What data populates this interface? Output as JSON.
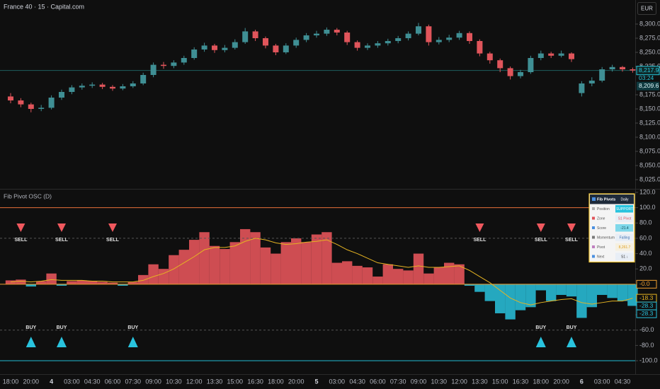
{
  "header": {
    "title": "France 40 · 15 · Capital.com",
    "currency": "EUR"
  },
  "chart_data": [
    {
      "type": "candlestick",
      "open": [
        8172,
        8165,
        8158,
        8150,
        8152,
        8170,
        8180,
        8188,
        8191,
        8193,
        8189,
        8186,
        8190,
        8195,
        8210,
        8228,
        8226,
        8232,
        8240,
        8255,
        8262,
        8254,
        8258,
        8268,
        8287,
        8275,
        8262,
        8250,
        8262,
        8272,
        8280,
        8283,
        8290,
        8285,
        8268,
        8258,
        8262,
        8266,
        8270,
        8275,
        8283,
        8296,
        8268,
        8272,
        8276,
        8284,
        8270,
        8248,
        8236,
        8222,
        8208,
        8215,
        8240,
        8248,
        8244,
        8248,
        8178,
        8195,
        8200,
        8220,
        8224,
        8220
      ],
      "high": [
        8178,
        8169,
        8161,
        8157,
        8174,
        8184,
        8192,
        8195,
        8197,
        8196,
        8192,
        8194,
        8199,
        8214,
        8232,
        8233,
        8236,
        8244,
        8259,
        8267,
        8265,
        8263,
        8273,
        8293,
        8290,
        8278,
        8265,
        8266,
        8276,
        8284,
        8288,
        8294,
        8293,
        8288,
        8271,
        8266,
        8270,
        8274,
        8279,
        8287,
        8302,
        8299,
        8277,
        8281,
        8288,
        8287,
        8273,
        8251,
        8239,
        8225,
        8219,
        8244,
        8253,
        8251,
        8253,
        8250,
        8199,
        8206,
        8224,
        8228,
        8226,
        8223
      ],
      "low": [
        8160,
        8153,
        8144,
        8146,
        8149,
        8166,
        8176,
        8184,
        8187,
        8185,
        8182,
        8183,
        8187,
        8192,
        8206,
        8221,
        8222,
        8228,
        8237,
        8251,
        8249,
        8250,
        8255,
        8265,
        8270,
        8257,
        8245,
        8247,
        8258,
        8268,
        8276,
        8279,
        8280,
        8263,
        8253,
        8254,
        8258,
        8262,
        8266,
        8271,
        8280,
        8262,
        8264,
        8268,
        8272,
        8265,
        8243,
        8230,
        8215,
        8202,
        8204,
        8212,
        8236,
        8240,
        8241,
        8233,
        8172,
        8190,
        8197,
        8216,
        8216,
        8214
      ],
      "close": [
        8165,
        8158,
        8150,
        8152,
        8170,
        8180,
        8188,
        8191,
        8193,
        8189,
        8186,
        8190,
        8195,
        8210,
        8228,
        8226,
        8232,
        8240,
        8255,
        8262,
        8254,
        8258,
        8268,
        8287,
        8275,
        8262,
        8250,
        8262,
        8272,
        8280,
        8283,
        8290,
        8285,
        8268,
        8258,
        8262,
        8266,
        8270,
        8275,
        8283,
        8296,
        8268,
        8272,
        8276,
        8284,
        8270,
        8248,
        8236,
        8222,
        8208,
        8215,
        8240,
        8248,
        8244,
        8248,
        8238,
        8195,
        8200,
        8220,
        8224,
        8220,
        8217.9
      ],
      "up_color": "#3f8f94",
      "down_color": "#e0555b",
      "ylim": [
        8010,
        8330
      ],
      "yticks": [
        {
          "value": 8300,
          "label": "8,300.0"
        },
        {
          "value": 8275,
          "label": "8,275.0"
        },
        {
          "value": 8250,
          "label": "8,250.0"
        },
        {
          "value": 8225,
          "label": "8,225.0"
        },
        {
          "value": 8175,
          "label": "8,175.0"
        },
        {
          "value": 8150,
          "label": "8,150.0"
        },
        {
          "value": 8125,
          "label": "8,125.0"
        },
        {
          "value": 8100,
          "label": "8,100.0"
        },
        {
          "value": 8075,
          "label": "8,075.0"
        },
        {
          "value": 8050,
          "label": "8,050.0"
        },
        {
          "value": 8025,
          "label": "8,025.0"
        }
      ],
      "price_line": {
        "value": 8217.9,
        "label": "8,217.9",
        "color": "#1f5f5f"
      },
      "countdown": "03:24",
      "price_labels": [
        {
          "value": 8209.6,
          "label": "8,209.6"
        }
      ]
    },
    {
      "type": "histogram",
      "title": "Fib Pivot OSC (D)",
      "categories": [
        "18:00",
        null,
        "20:00",
        null,
        "4",
        null,
        "03:00",
        null,
        "04:30",
        null,
        "06:00",
        null,
        "07:30",
        null,
        "09:00",
        null,
        "10:30",
        null,
        "12:00",
        null,
        "13:30",
        null,
        "15:00",
        null,
        "16:30",
        null,
        "18:00",
        null,
        "20:00",
        null,
        "5",
        null,
        "03:00",
        null,
        "04:30",
        null,
        "06:00",
        null,
        "07:30",
        null,
        "09:00",
        null,
        "10:30",
        null,
        "12:00",
        null,
        "13:30",
        null,
        "15:00",
        null,
        "16:30",
        null,
        "18:00",
        null,
        "20:00",
        null,
        "6",
        null,
        "03:00",
        null,
        "04:30",
        null
      ],
      "values": [
        5,
        6,
        -3,
        4,
        14,
        -2,
        4,
        5,
        4,
        3,
        2,
        -2,
        3,
        12,
        26,
        20,
        38,
        45,
        58,
        68,
        50,
        46,
        55,
        72,
        68,
        48,
        40,
        55,
        60,
        55,
        65,
        68,
        28,
        30,
        24,
        22,
        10,
        26,
        20,
        18,
        40,
        14,
        22,
        28,
        26,
        -2,
        -10,
        -22,
        -38,
        -46,
        -34,
        -30,
        -8,
        -22,
        -14,
        -16,
        -44,
        -30,
        -14,
        -18,
        -22,
        -28.3
      ],
      "positive_color": "#f0585e",
      "negative_color": "#29c3de",
      "signal_values": [
        3,
        4,
        3,
        4,
        6,
        5,
        5,
        5,
        4,
        4,
        3,
        3,
        3,
        5,
        10,
        14,
        20,
        28,
        36,
        45,
        48,
        48,
        50,
        56,
        60,
        58,
        54,
        52,
        53,
        55,
        56,
        58,
        52,
        45,
        40,
        34,
        28,
        26,
        24,
        22,
        24,
        22,
        22,
        23,
        24,
        18,
        10,
        2,
        -8,
        -18,
        -24,
        -27,
        -24,
        -22,
        -20,
        -19,
        -24,
        -26,
        -24,
        -22,
        -22,
        -18.3
      ],
      "signal_color": "#e6b422",
      "ylim": [
        -116.6,
        123.7
      ],
      "yticks": [
        {
          "value": 120,
          "label": "120.0"
        },
        {
          "value": 100,
          "label": "100.0"
        },
        {
          "value": 80,
          "label": "80.0"
        },
        {
          "value": 60,
          "label": "60.0"
        },
        {
          "value": 40,
          "label": "40.0"
        },
        {
          "value": 20,
          "label": "20.0"
        },
        {
          "value": -40,
          "label": "-40.0"
        },
        {
          "value": -60,
          "label": "-60.0"
        },
        {
          "value": -80,
          "label": "-80.0"
        },
        {
          "value": -100,
          "label": "-100.0"
        }
      ],
      "levels": [
        {
          "value": 100,
          "color": "#e8703a",
          "dashed": false
        },
        {
          "value": 60,
          "color": "#555555",
          "dashed": true
        },
        {
          "value": 0,
          "color": "#f0a030",
          "dashed": false
        },
        {
          "value": -60,
          "color": "#555555",
          "dashed": true
        },
        {
          "value": -100,
          "color": "#22b8d0",
          "dashed": false
        }
      ],
      "axis_value_labels": [
        {
          "value": 0,
          "label": "-0.0",
          "color": "#f0a030"
        },
        {
          "value": -18.3,
          "label": "-18.3",
          "color": "#e6b422"
        },
        {
          "value": -28.3,
          "label": "-28.3",
          "color": "#29c3de"
        },
        {
          "value": -28.3,
          "label": "-28.3",
          "color": "#29c3de"
        }
      ],
      "sell_signals": [
        null,
        "SELL",
        null,
        null,
        null,
        "SELL",
        null,
        null,
        null,
        null,
        "SELL",
        null,
        null,
        null,
        null,
        null,
        null,
        null,
        null,
        null,
        null,
        null,
        null,
        null,
        null,
        null,
        null,
        null,
        null,
        null,
        null,
        null,
        null,
        null,
        null,
        null,
        null,
        null,
        null,
        null,
        null,
        null,
        null,
        null,
        null,
        null,
        "SELL",
        null,
        null,
        null,
        null,
        null,
        "SELL",
        null,
        null,
        "SELL",
        null,
        null,
        null,
        null,
        null,
        null
      ],
      "buy_signals": [
        null,
        null,
        "BUY",
        null,
        null,
        "BUY",
        null,
        null,
        null,
        null,
        null,
        null,
        "BUY",
        null,
        null,
        null,
        null,
        null,
        null,
        null,
        null,
        null,
        null,
        null,
        null,
        null,
        null,
        null,
        null,
        null,
        null,
        null,
        null,
        null,
        null,
        null,
        null,
        null,
        null,
        null,
        null,
        null,
        null,
        null,
        null,
        null,
        null,
        null,
        null,
        null,
        null,
        null,
        "BUY",
        null,
        null,
        "BUY",
        null,
        null,
        null,
        null,
        null,
        null
      ],
      "sell_color": "#f0585e",
      "buy_color": "#29c3de"
    }
  ],
  "table": {
    "title": "Fib Pivots",
    "timeframe": "Daily",
    "rows": [
      [
        "Position",
        "SUPPORT"
      ],
      [
        "Zone",
        "S1 Pivot"
      ],
      [
        "Score",
        "-21.4"
      ],
      [
        "Momentum",
        "Falling"
      ],
      [
        "Pivot",
        "8,261.7"
      ],
      [
        "Next",
        "S1 ↓"
      ]
    ]
  }
}
